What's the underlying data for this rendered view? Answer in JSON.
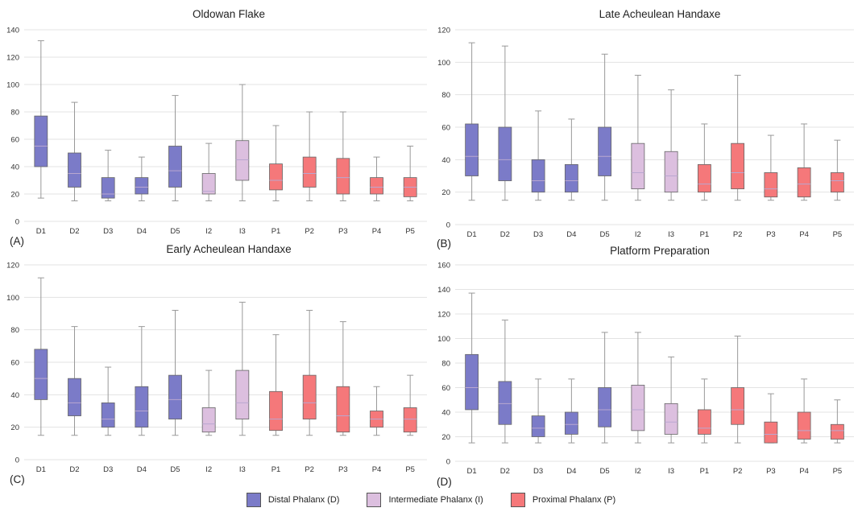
{
  "figure": {
    "legend": [
      {
        "label": "Distal Phalanx (D)",
        "color": "#7b7bc8"
      },
      {
        "label": "Intermediate Phalanx (I)",
        "color": "#dcbfdf"
      },
      {
        "label": "Proximal Phalanx (P)",
        "color": "#f5787a"
      }
    ],
    "group_colors": {
      "D": "#7b7bc8",
      "I": "#dcbfdf",
      "P": "#f5787a"
    }
  },
  "chart_data": [
    {
      "type": "boxplot",
      "panel": "(A)",
      "title": "Oldowan Flake",
      "ylim": [
        0,
        140
      ],
      "yticks": [
        0,
        20,
        40,
        60,
        80,
        100,
        120,
        140
      ],
      "grid": true,
      "categories": [
        "D1",
        "D2",
        "D3",
        "D4",
        "D5",
        "I2",
        "I3",
        "P1",
        "P2",
        "P3",
        "P4",
        "P5"
      ],
      "groups": [
        "D",
        "D",
        "D",
        "D",
        "D",
        "I",
        "I",
        "P",
        "P",
        "P",
        "P",
        "P"
      ],
      "boxes": [
        {
          "min": 17,
          "q1": 40,
          "median": 55,
          "q3": 77,
          "max": 132
        },
        {
          "min": 15,
          "q1": 25,
          "median": 35,
          "q3": 50,
          "max": 87
        },
        {
          "min": 15,
          "q1": 17,
          "median": 20,
          "q3": 32,
          "max": 52
        },
        {
          "min": 15,
          "q1": 20,
          "median": 25,
          "q3": 32,
          "max": 47
        },
        {
          "min": 15,
          "q1": 25,
          "median": 37,
          "q3": 55,
          "max": 92
        },
        {
          "min": 15,
          "q1": 20,
          "median": 22,
          "q3": 35,
          "max": 57
        },
        {
          "min": 15,
          "q1": 30,
          "median": 45,
          "q3": 59,
          "max": 100
        },
        {
          "min": 15,
          "q1": 23,
          "median": 30,
          "q3": 42,
          "max": 70
        },
        {
          "min": 15,
          "q1": 25,
          "median": 35,
          "q3": 47,
          "max": 80
        },
        {
          "min": 15,
          "q1": 20,
          "median": 32,
          "q3": 46,
          "max": 80
        },
        {
          "min": 15,
          "q1": 20,
          "median": 25,
          "q3": 32,
          "max": 47
        },
        {
          "min": 15,
          "q1": 18,
          "median": 25,
          "q3": 32,
          "max": 55
        }
      ]
    },
    {
      "type": "boxplot",
      "panel": "(B)",
      "title": "Late Acheulean Handaxe",
      "ylim": [
        0,
        120
      ],
      "yticks": [
        0,
        20,
        40,
        60,
        80,
        100,
        120
      ],
      "grid": true,
      "categories": [
        "D1",
        "D2",
        "D3",
        "D4",
        "D5",
        "I2",
        "I3",
        "P1",
        "P2",
        "P3",
        "P4",
        "P5"
      ],
      "groups": [
        "D",
        "D",
        "D",
        "D",
        "D",
        "I",
        "I",
        "P",
        "P",
        "P",
        "P",
        "P"
      ],
      "boxes": [
        {
          "min": 15,
          "q1": 30,
          "median": 42,
          "q3": 62,
          "max": 112
        },
        {
          "min": 15,
          "q1": 27,
          "median": 40,
          "q3": 60,
          "max": 110
        },
        {
          "min": 15,
          "q1": 20,
          "median": 27,
          "q3": 40,
          "max": 70
        },
        {
          "min": 15,
          "q1": 20,
          "median": 27,
          "q3": 37,
          "max": 65
        },
        {
          "min": 15,
          "q1": 30,
          "median": 42,
          "q3": 60,
          "max": 105
        },
        {
          "min": 15,
          "q1": 22,
          "median": 32,
          "q3": 50,
          "max": 92
        },
        {
          "min": 15,
          "q1": 20,
          "median": 30,
          "q3": 45,
          "max": 83
        },
        {
          "min": 15,
          "q1": 20,
          "median": 25,
          "q3": 37,
          "max": 62
        },
        {
          "min": 15,
          "q1": 22,
          "median": 32,
          "q3": 50,
          "max": 92
        },
        {
          "min": 15,
          "q1": 17,
          "median": 22,
          "q3": 32,
          "max": 55
        },
        {
          "min": 15,
          "q1": 17,
          "median": 25,
          "q3": 35,
          "max": 62
        },
        {
          "min": 15,
          "q1": 20,
          "median": 27,
          "q3": 32,
          "max": 52
        }
      ]
    },
    {
      "type": "boxplot",
      "panel": "(C)",
      "title": "Early Acheulean Handaxe",
      "ylim": [
        0,
        120
      ],
      "yticks": [
        0,
        20,
        40,
        60,
        80,
        100,
        120
      ],
      "grid": true,
      "categories": [
        "D1",
        "D2",
        "D3",
        "D4",
        "D5",
        "I2",
        "I3",
        "P1",
        "P2",
        "P3",
        "P4",
        "P5"
      ],
      "groups": [
        "D",
        "D",
        "D",
        "D",
        "D",
        "I",
        "I",
        "P",
        "P",
        "P",
        "P",
        "P"
      ],
      "boxes": [
        {
          "min": 15,
          "q1": 37,
          "median": 50,
          "q3": 68,
          "max": 112
        },
        {
          "min": 15,
          "q1": 27,
          "median": 35,
          "q3": 50,
          "max": 82
        },
        {
          "min": 15,
          "q1": 20,
          "median": 25,
          "q3": 35,
          "max": 57
        },
        {
          "min": 15,
          "q1": 20,
          "median": 30,
          "q3": 45,
          "max": 82
        },
        {
          "min": 15,
          "q1": 25,
          "median": 37,
          "q3": 52,
          "max": 92
        },
        {
          "min": 15,
          "q1": 17,
          "median": 22,
          "q3": 32,
          "max": 55
        },
        {
          "min": 15,
          "q1": 25,
          "median": 35,
          "q3": 55,
          "max": 97
        },
        {
          "min": 15,
          "q1": 18,
          "median": 25,
          "q3": 42,
          "max": 77
        },
        {
          "min": 15,
          "q1": 25,
          "median": 35,
          "q3": 52,
          "max": 92
        },
        {
          "min": 15,
          "q1": 17,
          "median": 27,
          "q3": 45,
          "max": 85
        },
        {
          "min": 15,
          "q1": 20,
          "median": 25,
          "q3": 30,
          "max": 45
        },
        {
          "min": 15,
          "q1": 17,
          "median": 25,
          "q3": 32,
          "max": 52
        }
      ]
    },
    {
      "type": "boxplot",
      "panel": "(D)",
      "title": "Platform Preparation",
      "ylim": [
        0,
        160
      ],
      "yticks": [
        0,
        20,
        40,
        60,
        80,
        100,
        120,
        140,
        160
      ],
      "grid": true,
      "categories": [
        "D1",
        "D2",
        "D3",
        "D4",
        "D5",
        "I2",
        "I3",
        "P1",
        "P2",
        "P3",
        "P4",
        "P5"
      ],
      "groups": [
        "D",
        "D",
        "D",
        "D",
        "D",
        "I",
        "I",
        "P",
        "P",
        "P",
        "P",
        "P"
      ],
      "boxes": [
        {
          "min": 15,
          "q1": 42,
          "median": 60,
          "q3": 87,
          "max": 137
        },
        {
          "min": 15,
          "q1": 30,
          "median": 47,
          "q3": 65,
          "max": 115
        },
        {
          "min": 15,
          "q1": 20,
          "median": 27,
          "q3": 37,
          "max": 67
        },
        {
          "min": 15,
          "q1": 22,
          "median": 30,
          "q3": 40,
          "max": 67
        },
        {
          "min": 15,
          "q1": 28,
          "median": 42,
          "q3": 60,
          "max": 105
        },
        {
          "min": 15,
          "q1": 25,
          "median": 42,
          "q3": 62,
          "max": 105
        },
        {
          "min": 15,
          "q1": 22,
          "median": 32,
          "q3": 47,
          "max": 85
        },
        {
          "min": 15,
          "q1": 22,
          "median": 27,
          "q3": 42,
          "max": 67
        },
        {
          "min": 15,
          "q1": 30,
          "median": 42,
          "q3": 60,
          "max": 102
        },
        {
          "min": 15,
          "q1": 15,
          "median": 22,
          "q3": 32,
          "max": 55
        },
        {
          "min": 15,
          "q1": 18,
          "median": 25,
          "q3": 40,
          "max": 67
        },
        {
          "min": 15,
          "q1": 18,
          "median": 25,
          "q3": 30,
          "max": 50
        }
      ]
    }
  ]
}
